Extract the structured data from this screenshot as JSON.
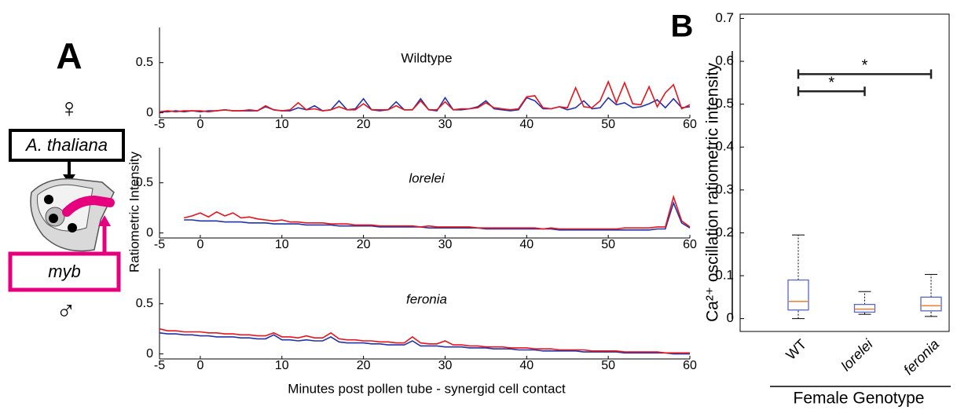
{
  "figure": {
    "panel_a_label": "A",
    "panel_b_label": "B",
    "female_symbol": "♀",
    "species": "A. thaliana",
    "gene": "myb",
    "male_symbol": "♂"
  },
  "chart_data": [
    {
      "type": "line",
      "subtitle": "Wildtype",
      "x": [
        -5,
        -4,
        -3,
        -2,
        -1,
        0,
        1,
        2,
        3,
        4,
        5,
        6,
        7,
        8,
        9,
        10,
        11,
        12,
        13,
        14,
        15,
        16,
        17,
        18,
        19,
        20,
        21,
        22,
        23,
        24,
        25,
        26,
        27,
        28,
        29,
        30,
        31,
        32,
        33,
        34,
        35,
        36,
        37,
        38,
        39,
        40,
        41,
        42,
        43,
        44,
        45,
        46,
        47,
        48,
        49,
        50,
        51,
        52,
        53,
        54,
        55,
        56,
        57,
        58,
        59,
        60
      ],
      "series": [
        {
          "color": "#2233aa",
          "values": [
            0.01,
            0.01,
            0.02,
            0.01,
            0.02,
            0.01,
            0.02,
            0.02,
            0.03,
            0.02,
            0.02,
            0.02,
            0.02,
            0.06,
            0.03,
            0.02,
            0.02,
            0.05,
            0.03,
            0.07,
            0.02,
            0.03,
            0.12,
            0.03,
            0.04,
            0.14,
            0.03,
            0.02,
            0.03,
            0.11,
            0.03,
            0.03,
            0.14,
            0.03,
            0.02,
            0.15,
            0.03,
            0.03,
            0.04,
            0.06,
            0.12,
            0.04,
            0.03,
            0.02,
            0.03,
            0.15,
            0.12,
            0.04,
            0.04,
            0.06,
            0.03,
            0.05,
            0.12,
            0.04,
            0.05,
            0.15,
            0.08,
            0.1,
            0.05,
            0.06,
            0.09,
            0.13,
            0.05,
            0.14,
            0.05,
            0.06
          ]
        },
        {
          "color": "#e8141c",
          "values": [
            0.01,
            0.02,
            0.01,
            0.02,
            0.02,
            0.02,
            0.01,
            0.02,
            0.03,
            0.02,
            0.02,
            0.03,
            0.02,
            0.07,
            0.03,
            0.02,
            0.03,
            0.1,
            0.03,
            0.04,
            0.02,
            0.03,
            0.06,
            0.03,
            0.03,
            0.09,
            0.03,
            0.03,
            0.03,
            0.07,
            0.03,
            0.03,
            0.12,
            0.03,
            0.03,
            0.11,
            0.03,
            0.04,
            0.04,
            0.05,
            0.1,
            0.05,
            0.04,
            0.03,
            0.04,
            0.16,
            0.17,
            0.05,
            0.04,
            0.06,
            0.05,
            0.25,
            0.06,
            0.05,
            0.12,
            0.31,
            0.1,
            0.3,
            0.09,
            0.08,
            0.26,
            0.06,
            0.2,
            0.28,
            0.04,
            0.08
          ]
        }
      ],
      "xlim": [
        -5,
        60
      ],
      "xticks": [
        -5,
        0,
        10,
        20,
        30,
        40,
        50,
        60
      ],
      "ylim": [
        -0.05,
        0.85
      ],
      "yticks": [
        0,
        0.5
      ]
    },
    {
      "type": "line",
      "subtitle": "lorelei",
      "ylabel": "Ratiometric Intensity",
      "x": [
        -5,
        -4,
        -3,
        -2,
        -1,
        0,
        1,
        2,
        3,
        4,
        5,
        6,
        7,
        8,
        9,
        10,
        11,
        12,
        13,
        14,
        15,
        16,
        17,
        18,
        19,
        20,
        21,
        22,
        23,
        24,
        25,
        26,
        27,
        28,
        29,
        30,
        31,
        32,
        33,
        34,
        35,
        36,
        37,
        38,
        39,
        40,
        41,
        42,
        43,
        44,
        45,
        46,
        47,
        48,
        49,
        50,
        51,
        52,
        53,
        54,
        55,
        56,
        57,
        58,
        59,
        60
      ],
      "series": [
        {
          "color": "#2233aa",
          "values": [
            null,
            null,
            null,
            0.13,
            0.13,
            0.12,
            0.12,
            0.12,
            0.11,
            0.11,
            0.11,
            0.1,
            0.1,
            0.1,
            0.09,
            0.09,
            0.09,
            0.09,
            0.08,
            0.08,
            0.08,
            0.08,
            0.07,
            0.07,
            0.07,
            0.07,
            0.07,
            0.06,
            0.06,
            0.06,
            0.06,
            0.06,
            0.06,
            0.05,
            0.05,
            0.05,
            0.05,
            0.05,
            0.05,
            0.05,
            0.04,
            0.04,
            0.04,
            0.04,
            0.04,
            0.04,
            0.04,
            0.04,
            0.04,
            0.03,
            0.03,
            0.03,
            0.03,
            0.03,
            0.03,
            0.03,
            0.03,
            0.03,
            0.03,
            0.03,
            0.03,
            0.04,
            0.04,
            0.3,
            0.1,
            0.05
          ]
        },
        {
          "color": "#e8141c",
          "values": [
            null,
            null,
            null,
            0.15,
            0.17,
            0.2,
            0.16,
            0.21,
            0.17,
            0.2,
            0.15,
            0.16,
            0.14,
            0.13,
            0.12,
            0.13,
            0.11,
            0.11,
            0.1,
            0.1,
            0.1,
            0.09,
            0.09,
            0.09,
            0.08,
            0.08,
            0.08,
            0.07,
            0.07,
            0.07,
            0.07,
            0.07,
            0.06,
            0.07,
            0.06,
            0.06,
            0.06,
            0.06,
            0.06,
            0.05,
            0.05,
            0.05,
            0.05,
            0.05,
            0.05,
            0.05,
            0.05,
            0.04,
            0.05,
            0.04,
            0.04,
            0.04,
            0.04,
            0.04,
            0.04,
            0.04,
            0.04,
            0.05,
            0.05,
            0.05,
            0.05,
            0.06,
            0.06,
            0.36,
            0.12,
            0.06
          ]
        }
      ],
      "xlim": [
        -5,
        60
      ],
      "xticks": [
        -5,
        0,
        10,
        20,
        30,
        40,
        50,
        60
      ],
      "ylim": [
        -0.05,
        0.85
      ],
      "yticks": [
        0,
        0.5
      ]
    },
    {
      "type": "line",
      "subtitle": "feronia",
      "xlabel": "Minutes post pollen tube - synergid cell contact",
      "x": [
        -5,
        -4,
        -3,
        -2,
        -1,
        0,
        1,
        2,
        3,
        4,
        5,
        6,
        7,
        8,
        9,
        10,
        11,
        12,
        13,
        14,
        15,
        16,
        17,
        18,
        19,
        20,
        21,
        22,
        23,
        24,
        25,
        26,
        27,
        28,
        29,
        30,
        31,
        32,
        33,
        34,
        35,
        36,
        37,
        38,
        39,
        40,
        41,
        42,
        43,
        44,
        45,
        46,
        47,
        48,
        49,
        50,
        51,
        52,
        53,
        54,
        55,
        56,
        57,
        58,
        59,
        60
      ],
      "series": [
        {
          "color": "#2233aa",
          "values": [
            0.21,
            0.2,
            0.2,
            0.19,
            0.19,
            0.18,
            0.18,
            0.17,
            0.17,
            0.17,
            0.16,
            0.16,
            0.15,
            0.15,
            0.19,
            0.14,
            0.14,
            0.13,
            0.14,
            0.13,
            0.13,
            0.17,
            0.12,
            0.11,
            0.11,
            0.11,
            0.1,
            0.1,
            0.09,
            0.09,
            0.09,
            0.13,
            0.08,
            0.08,
            0.08,
            0.07,
            0.07,
            0.07,
            0.06,
            0.06,
            0.06,
            0.05,
            0.05,
            0.05,
            0.04,
            0.04,
            0.04,
            0.03,
            0.03,
            0.03,
            0.03,
            0.03,
            0.02,
            0.02,
            0.02,
            0.02,
            0.02,
            0.01,
            0.01,
            0.01,
            0.01,
            0.01,
            0.01,
            0.0,
            0.0,
            0.0
          ]
        },
        {
          "color": "#e8141c",
          "values": [
            0.25,
            0.23,
            0.23,
            0.22,
            0.22,
            0.22,
            0.21,
            0.21,
            0.2,
            0.2,
            0.19,
            0.19,
            0.18,
            0.18,
            0.21,
            0.17,
            0.17,
            0.16,
            0.18,
            0.16,
            0.16,
            0.21,
            0.15,
            0.14,
            0.14,
            0.13,
            0.13,
            0.12,
            0.12,
            0.11,
            0.11,
            0.17,
            0.11,
            0.1,
            0.1,
            0.13,
            0.09,
            0.09,
            0.08,
            0.08,
            0.07,
            0.07,
            0.07,
            0.06,
            0.06,
            0.06,
            0.05,
            0.05,
            0.05,
            0.04,
            0.04,
            0.04,
            0.04,
            0.03,
            0.03,
            0.03,
            0.03,
            0.02,
            0.02,
            0.02,
            0.02,
            0.02,
            0.01,
            0.01,
            0.01,
            0.01
          ]
        }
      ],
      "xlim": [
        -5,
        60
      ],
      "xticks": [
        -5,
        0,
        10,
        20,
        30,
        40,
        50,
        60
      ],
      "ylim": [
        -0.05,
        0.85
      ],
      "yticks": [
        0,
        0.5
      ]
    },
    {
      "type": "box",
      "ylabel": "Ca²⁺ oscillation ratiometric intensity",
      "xlabel": "Female Genotype",
      "categories": [
        "WT",
        "lorelei",
        "feronia"
      ],
      "whisker_low": [
        0.0,
        0.01,
        0.005
      ],
      "q1": [
        0.02,
        0.015,
        0.018
      ],
      "median": [
        0.04,
        0.022,
        0.03
      ],
      "q3": [
        0.09,
        0.033,
        0.05
      ],
      "whisker_high": [
        0.195,
        0.063,
        0.103
      ],
      "box_color": "#5566cc",
      "median_color": "#f08030",
      "ylim": [
        -0.03,
        0.71
      ],
      "yticks": [
        0,
        0.1,
        0.2,
        0.3,
        0.4,
        0.5,
        0.6,
        0.7
      ],
      "annotations": [
        {
          "pair": [
            "WT",
            "lorelei"
          ],
          "y": 0.53,
          "label": "*"
        },
        {
          "pair": [
            "WT",
            "feronia"
          ],
          "y": 0.57,
          "label": "*"
        }
      ]
    }
  ]
}
